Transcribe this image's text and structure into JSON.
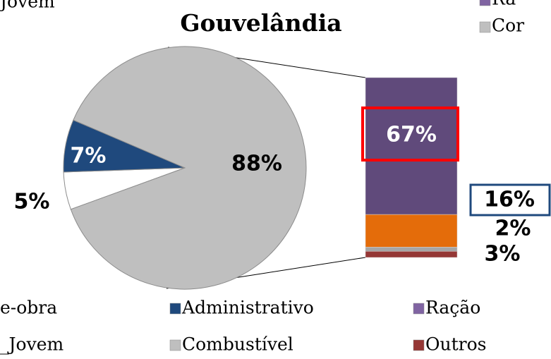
{
  "chart_data": {
    "type": "pie-of-bar",
    "title": "Gouvelândia",
    "legend_fragment": "Jovem",
    "pie": {
      "values": [
        5,
        7,
        88
      ],
      "value_labels": [
        "5%",
        "7%",
        "88%"
      ],
      "colors": [
        "#ffffff",
        "#1f497d",
        "#bfbfbf"
      ]
    },
    "bar": {
      "values": [
        67,
        16,
        2,
        3
      ],
      "value_labels": [
        "67%",
        "16%",
        "2%",
        "3%"
      ],
      "colors": [
        "#604a7b",
        "#e46c0a",
        "#a6a6a6",
        "#953735"
      ]
    },
    "legend": [
      {
        "name": "e-obra"
      },
      {
        "name": "Administrativo",
        "color": "#1f497d"
      },
      {
        "name": "Ração",
        "color": "#8064a2"
      },
      {
        "name": "_Jovem"
      },
      {
        "name": "Combustível",
        "color": "#bfbfbf"
      },
      {
        "name": "Outros",
        "color": "#953735"
      }
    ],
    "legend_top": [
      {
        "name": "Ra",
        "color": "#8064a2"
      },
      {
        "name": "Cor",
        "color": "#bfbfbf"
      }
    ]
  }
}
